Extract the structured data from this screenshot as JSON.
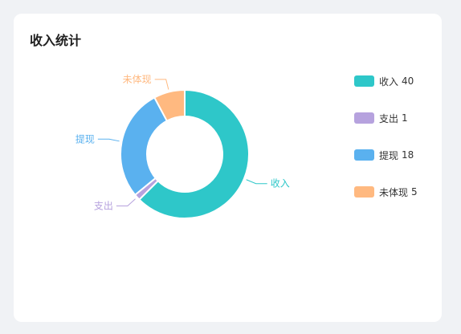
{
  "card": {
    "title": "收入统计"
  },
  "chart_data": {
    "type": "pie",
    "style": "donut",
    "categories": [
      "收入",
      "支出",
      "提现",
      "未体现"
    ],
    "values": [
      40,
      1,
      18,
      5
    ],
    "colors": [
      "#2ec7c9",
      "#b6a2de",
      "#5ab1ef",
      "#ffb980"
    ],
    "legend_placement": "right"
  }
}
